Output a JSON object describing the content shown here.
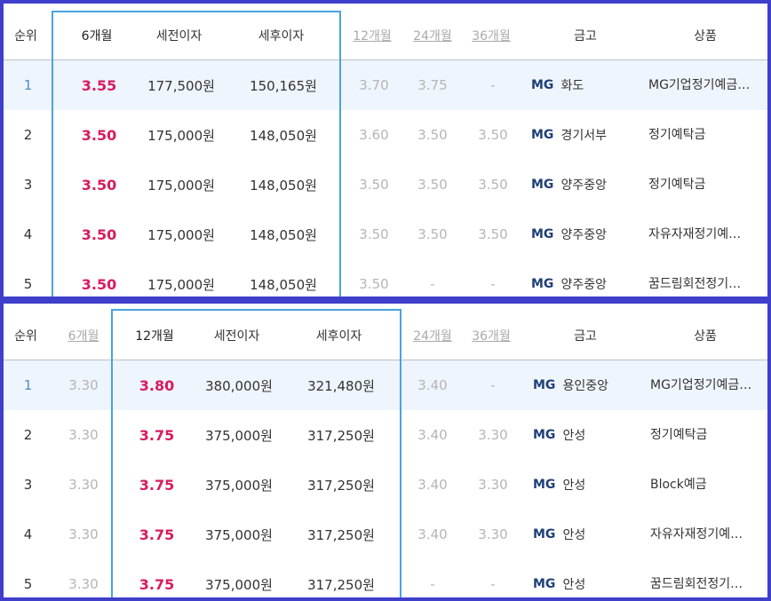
{
  "tables": [
    {
      "active_term": "6개월",
      "headers": {
        "rank": "순위",
        "term_6": "6개월",
        "pre_tax": "세전이자",
        "post_tax": "세후이자",
        "term_12": "12개월",
        "term_24": "24개월",
        "term_36": "36개월",
        "bank": "금고",
        "product": "상품"
      },
      "rows": [
        {
          "rank": "1",
          "main_rate": "3.55",
          "pre_tax": "177,500원",
          "post_tax": "150,165원",
          "r12": "3.70",
          "r24": "3.75",
          "r36": "-",
          "bank_logo": "MG",
          "bank": "화도",
          "product": "MG기업정기예금…"
        },
        {
          "rank": "2",
          "main_rate": "3.50",
          "pre_tax": "175,000원",
          "post_tax": "148,050원",
          "r12": "3.60",
          "r24": "3.50",
          "r36": "3.50",
          "bank_logo": "MG",
          "bank": "경기서부",
          "product": "정기예탁금"
        },
        {
          "rank": "3",
          "main_rate": "3.50",
          "pre_tax": "175,000원",
          "post_tax": "148,050원",
          "r12": "3.50",
          "r24": "3.50",
          "r36": "3.50",
          "bank_logo": "MG",
          "bank": "양주중앙",
          "product": "정기예탁금"
        },
        {
          "rank": "4",
          "main_rate": "3.50",
          "pre_tax": "175,000원",
          "post_tax": "148,050원",
          "r12": "3.50",
          "r24": "3.50",
          "r36": "3.50",
          "bank_logo": "MG",
          "bank": "양주중앙",
          "product": "자유자재정기예…"
        },
        {
          "rank": "5",
          "main_rate": "3.50",
          "pre_tax": "175,000원",
          "post_tax": "148,050원",
          "r12": "3.50",
          "r24": "-",
          "r36": "-",
          "bank_logo": "MG",
          "bank": "양주중앙",
          "product": "꿈드림회전정기…"
        }
      ]
    },
    {
      "active_term": "12개월",
      "headers": {
        "rank": "순위",
        "term_6": "6개월",
        "term_12": "12개월",
        "pre_tax": "세전이자",
        "post_tax": "세후이자",
        "term_24": "24개월",
        "term_36": "36개월",
        "bank": "금고",
        "product": "상품"
      },
      "rows": [
        {
          "rank": "1",
          "r6": "3.30",
          "main_rate": "3.80",
          "pre_tax": "380,000원",
          "post_tax": "321,480원",
          "r24": "3.40",
          "r36": "-",
          "bank_logo": "MG",
          "bank": "용인중앙",
          "product": "MG기업정기예금…"
        },
        {
          "rank": "2",
          "r6": "3.30",
          "main_rate": "3.75",
          "pre_tax": "375,000원",
          "post_tax": "317,250원",
          "r24": "3.40",
          "r36": "3.30",
          "bank_logo": "MG",
          "bank": "안성",
          "product": "정기예탁금"
        },
        {
          "rank": "3",
          "r6": "3.30",
          "main_rate": "3.75",
          "pre_tax": "375,000원",
          "post_tax": "317,250원",
          "r24": "3.40",
          "r36": "3.30",
          "bank_logo": "MG",
          "bank": "안성",
          "product": "Block예금"
        },
        {
          "rank": "4",
          "r6": "3.30",
          "main_rate": "3.75",
          "pre_tax": "375,000원",
          "post_tax": "317,250원",
          "r24": "3.40",
          "r36": "3.30",
          "bank_logo": "MG",
          "bank": "안성",
          "product": "자유자재정기예…"
        },
        {
          "rank": "5",
          "r6": "3.30",
          "main_rate": "3.75",
          "pre_tax": "375,000원",
          "post_tax": "317,250원",
          "r24": "-",
          "r36": "-",
          "bank_logo": "MG",
          "bank": "안성",
          "product": "꿈드림회전정기…"
        }
      ]
    }
  ]
}
